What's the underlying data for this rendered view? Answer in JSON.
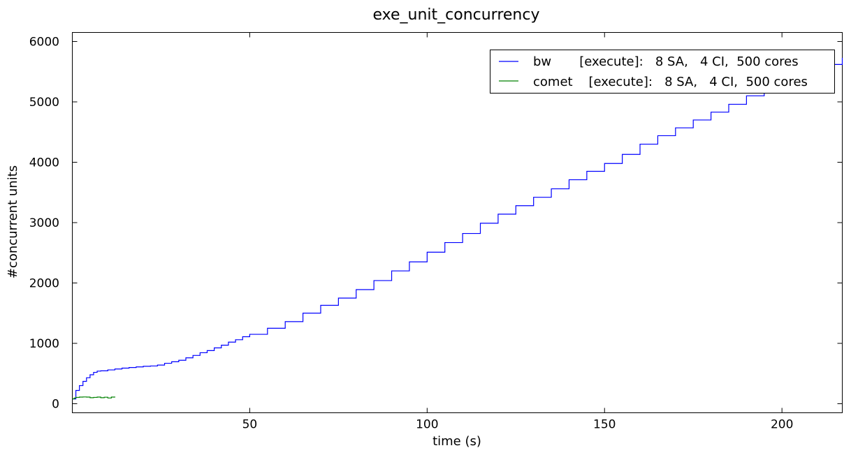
{
  "chart_data": {
    "type": "line",
    "title": "exe_unit_concurrency",
    "xlabel": "time (s)",
    "ylabel": "#concurrent units",
    "xlim": [
      0,
      217
    ],
    "ylim": [
      -150,
      6150
    ],
    "xticks": [
      50,
      100,
      150,
      200
    ],
    "yticks": [
      0,
      1000,
      2000,
      3000,
      4000,
      5000,
      6000
    ],
    "grid": false,
    "legend_position": "top-right",
    "series": [
      {
        "name": "bw       [execute]:   8 SA,   4 CI,  500 cores",
        "color": "#0000ff",
        "step": true,
        "x": [
          0,
          1,
          2,
          3,
          4,
          5,
          6,
          7,
          8,
          10,
          12,
          14,
          16,
          18,
          20,
          22,
          24,
          26,
          28,
          30,
          32,
          34,
          36,
          38,
          40,
          42,
          44,
          46,
          48,
          50,
          55,
          60,
          65,
          70,
          75,
          80,
          85,
          90,
          95,
          100,
          105,
          110,
          115,
          120,
          125,
          130,
          135,
          140,
          145,
          150,
          155,
          160,
          165,
          170,
          175,
          180,
          185,
          190,
          195,
          200,
          205,
          210,
          217
        ],
        "y": [
          80,
          220,
          300,
          370,
          430,
          480,
          520,
          540,
          545,
          560,
          575,
          590,
          600,
          610,
          620,
          625,
          640,
          670,
          695,
          720,
          760,
          800,
          845,
          880,
          925,
          970,
          1020,
          1060,
          1110,
          1150,
          1250,
          1360,
          1500,
          1630,
          1750,
          1890,
          2040,
          2200,
          2350,
          2510,
          2670,
          2820,
          2990,
          3140,
          3280,
          3420,
          3560,
          3710,
          3850,
          3980,
          4130,
          4300,
          4440,
          4570,
          4700,
          4830,
          4960,
          5100,
          5250,
          5380,
          5500,
          5620,
          5730
        ]
      },
      {
        "name": "comet    [execute]:   8 SA,   4 CI,  500 cores",
        "color": "#008000",
        "step": true,
        "x": [
          0,
          0.5,
          1,
          2,
          3,
          4,
          5,
          6,
          7,
          8,
          9,
          10,
          11,
          12
        ],
        "y": [
          80,
          95,
          105,
          110,
          112,
          110,
          100,
          105,
          110,
          100,
          108,
          95,
          110,
          105
        ]
      }
    ]
  }
}
